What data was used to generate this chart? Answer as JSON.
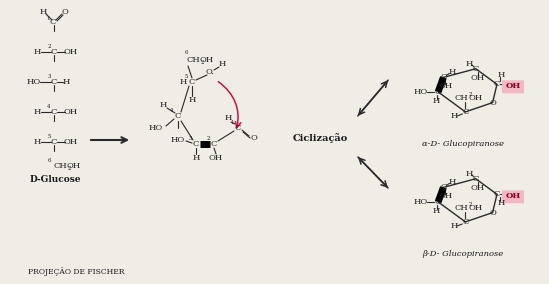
{
  "bg_color": "#f0ede5",
  "bond_color": "#2a2a2a",
  "text_color": "#1a1a1a",
  "arrow_color": "#cc1144",
  "oh_highlight_color": "#f2b8c2",
  "oh_text_color": "#8b0020",
  "fischer_label": "D-Glucose",
  "fischer_sublabel": "PROJEÇÃO DE FISCHER",
  "alpha_label": "α-D- Glucopiranose",
  "beta_label": "β-D- Glucopiranose",
  "ciclizacao_label": "Ciclização"
}
